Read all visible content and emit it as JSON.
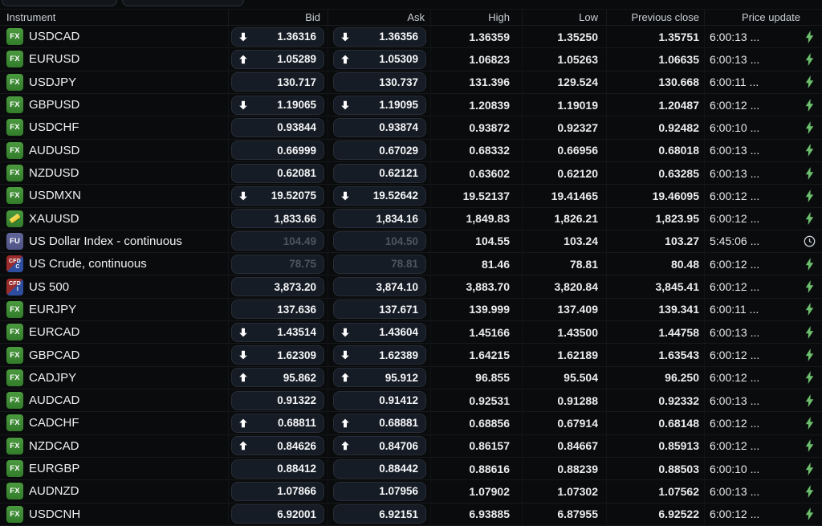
{
  "topbar": {
    "pill_left": "",
    "pill_right": ""
  },
  "header": {
    "columns": [
      "Instrument",
      "Bid",
      "Ask",
      "High",
      "Low",
      "Previous close",
      "Price update"
    ]
  },
  "icons": {
    "fx_badge": "fx-instrument-badge",
    "gold_badge": "gold-bar-icon",
    "fu_badge": "futures-instrument-badge",
    "cfd_badge": "cfd-instrument-badge",
    "arrow_down": "price-down-arrow-icon",
    "arrow_up": "price-up-arrow-icon",
    "bolt": "live-price-lightning-icon",
    "clock": "delayed-price-clock-icon"
  },
  "colors": {
    "background": "#0a0b0c",
    "button_bg": "#161c25",
    "fx_badge_green": "#3f8c34",
    "fu_badge_slate": "#585d91",
    "cfd_red": "#9c2b2b",
    "cfd_blue": "#2e4d9e",
    "gold": "#f0d040",
    "bolt_green": "#6cbf6d",
    "disabled_text": "#4d555e"
  },
  "rows": [
    {
      "badge_type": "fx",
      "badge_label": "FX",
      "badge_sub": "",
      "name": "USDCAD",
      "direction": "down",
      "bid": "1.36316",
      "ask": "1.36356",
      "high": "1.36359",
      "low": "1.35250",
      "prev_close": "1.35751",
      "time": "6:00:13 ...",
      "disabled": false,
      "status_icon": "bolt"
    },
    {
      "badge_type": "fx",
      "badge_label": "FX",
      "badge_sub": "",
      "name": "EURUSD",
      "direction": "up",
      "bid": "1.05289",
      "ask": "1.05309",
      "high": "1.06823",
      "low": "1.05263",
      "prev_close": "1.06635",
      "time": "6:00:13 ...",
      "disabled": false,
      "status_icon": "bolt"
    },
    {
      "badge_type": "fx",
      "badge_label": "FX",
      "badge_sub": "",
      "name": "USDJPY",
      "direction": "none",
      "bid": "130.717",
      "ask": "130.737",
      "high": "131.396",
      "low": "129.524",
      "prev_close": "130.668",
      "time": "6:00:11 ...",
      "disabled": false,
      "status_icon": "bolt"
    },
    {
      "badge_type": "fx",
      "badge_label": "FX",
      "badge_sub": "",
      "name": "GBPUSD",
      "direction": "down",
      "bid": "1.19065",
      "ask": "1.19095",
      "high": "1.20839",
      "low": "1.19019",
      "prev_close": "1.20487",
      "time": "6:00:12 ...",
      "disabled": false,
      "status_icon": "bolt"
    },
    {
      "badge_type": "fx",
      "badge_label": "FX",
      "badge_sub": "",
      "name": "USDCHF",
      "direction": "none",
      "bid": "0.93844",
      "ask": "0.93874",
      "high": "0.93872",
      "low": "0.92327",
      "prev_close": "0.92482",
      "time": "6:00:10 ...",
      "disabled": false,
      "status_icon": "bolt"
    },
    {
      "badge_type": "fx",
      "badge_label": "FX",
      "badge_sub": "",
      "name": "AUDUSD",
      "direction": "none",
      "bid": "0.66999",
      "ask": "0.67029",
      "high": "0.68332",
      "low": "0.66956",
      "prev_close": "0.68018",
      "time": "6:00:13 ...",
      "disabled": false,
      "status_icon": "bolt"
    },
    {
      "badge_type": "fx",
      "badge_label": "FX",
      "badge_sub": "",
      "name": "NZDUSD",
      "direction": "none",
      "bid": "0.62081",
      "ask": "0.62121",
      "high": "0.63602",
      "low": "0.62120",
      "prev_close": "0.63285",
      "time": "6:00:13 ...",
      "disabled": false,
      "status_icon": "bolt"
    },
    {
      "badge_type": "fx",
      "badge_label": "FX",
      "badge_sub": "",
      "name": "USDMXN",
      "direction": "down",
      "bid": "19.52075",
      "ask": "19.52642",
      "high": "19.52137",
      "low": "19.41465",
      "prev_close": "19.46095",
      "time": "6:00:12 ...",
      "disabled": false,
      "status_icon": "bolt"
    },
    {
      "badge_type": "gold",
      "badge_label": "",
      "badge_sub": "",
      "name": "XAUUSD",
      "direction": "none",
      "bid": "1,833.66",
      "ask": "1,834.16",
      "high": "1,849.83",
      "low": "1,826.21",
      "prev_close": "1,823.95",
      "time": "6:00:12 ...",
      "disabled": false,
      "status_icon": "bolt"
    },
    {
      "badge_type": "fu",
      "badge_label": "FU",
      "badge_sub": "",
      "name": "US Dollar Index - continuous",
      "direction": "none",
      "bid": "104.49",
      "ask": "104.50",
      "high": "104.55",
      "low": "103.24",
      "prev_close": "103.27",
      "time": "5:45:06 ...",
      "disabled": true,
      "status_icon": "clock"
    },
    {
      "badge_type": "cfd",
      "badge_label": "CFD",
      "badge_sub": "C",
      "name": "US Crude, continuous",
      "direction": "none",
      "bid": "78.75",
      "ask": "78.81",
      "high": "81.46",
      "low": "78.81",
      "prev_close": "80.48",
      "time": "6:00:12 ...",
      "disabled": true,
      "status_icon": "bolt"
    },
    {
      "badge_type": "cfd",
      "badge_label": "CFD",
      "badge_sub": "I",
      "name": "US 500",
      "direction": "none",
      "bid": "3,873.20",
      "ask": "3,874.10",
      "high": "3,883.70",
      "low": "3,820.84",
      "prev_close": "3,845.41",
      "time": "6:00:12 ...",
      "disabled": false,
      "status_icon": "bolt"
    },
    {
      "badge_type": "fx",
      "badge_label": "FX",
      "badge_sub": "",
      "name": "EURJPY",
      "direction": "none",
      "bid": "137.636",
      "ask": "137.671",
      "high": "139.999",
      "low": "137.409",
      "prev_close": "139.341",
      "time": "6:00:11 ...",
      "disabled": false,
      "status_icon": "bolt"
    },
    {
      "badge_type": "fx",
      "badge_label": "FX",
      "badge_sub": "",
      "name": "EURCAD",
      "direction": "down",
      "bid": "1.43514",
      "ask": "1.43604",
      "high": "1.45166",
      "low": "1.43500",
      "prev_close": "1.44758",
      "time": "6:00:13 ...",
      "disabled": false,
      "status_icon": "bolt"
    },
    {
      "badge_type": "fx",
      "badge_label": "FX",
      "badge_sub": "",
      "name": "GBPCAD",
      "direction": "down",
      "bid": "1.62309",
      "ask": "1.62389",
      "high": "1.64215",
      "low": "1.62189",
      "prev_close": "1.63543",
      "time": "6:00:12 ...",
      "disabled": false,
      "status_icon": "bolt"
    },
    {
      "badge_type": "fx",
      "badge_label": "FX",
      "badge_sub": "",
      "name": "CADJPY",
      "direction": "up",
      "bid": "95.862",
      "ask": "95.912",
      "high": "96.855",
      "low": "95.504",
      "prev_close": "96.250",
      "time": "6:00:12 ...",
      "disabled": false,
      "status_icon": "bolt"
    },
    {
      "badge_type": "fx",
      "badge_label": "FX",
      "badge_sub": "",
      "name": "AUDCAD",
      "direction": "none",
      "bid": "0.91322",
      "ask": "0.91412",
      "high": "0.92531",
      "low": "0.91288",
      "prev_close": "0.92332",
      "time": "6:00:13 ...",
      "disabled": false,
      "status_icon": "bolt"
    },
    {
      "badge_type": "fx",
      "badge_label": "FX",
      "badge_sub": "",
      "name": "CADCHF",
      "direction": "up",
      "bid": "0.68811",
      "ask": "0.68881",
      "high": "0.68856",
      "low": "0.67914",
      "prev_close": "0.68148",
      "time": "6:00:12 ...",
      "disabled": false,
      "status_icon": "bolt"
    },
    {
      "badge_type": "fx",
      "badge_label": "FX",
      "badge_sub": "",
      "name": "NZDCAD",
      "direction": "up",
      "bid": "0.84626",
      "ask": "0.84706",
      "high": "0.86157",
      "low": "0.84667",
      "prev_close": "0.85913",
      "time": "6:00:12 ...",
      "disabled": false,
      "status_icon": "bolt"
    },
    {
      "badge_type": "fx",
      "badge_label": "FX",
      "badge_sub": "",
      "name": "EURGBP",
      "direction": "none",
      "bid": "0.88412",
      "ask": "0.88442",
      "high": "0.88616",
      "low": "0.88239",
      "prev_close": "0.88503",
      "time": "6:00:10 ...",
      "disabled": false,
      "status_icon": "bolt"
    },
    {
      "badge_type": "fx",
      "badge_label": "FX",
      "badge_sub": "",
      "name": "AUDNZD",
      "direction": "none",
      "bid": "1.07866",
      "ask": "1.07956",
      "high": "1.07902",
      "low": "1.07302",
      "prev_close": "1.07562",
      "time": "6:00:13 ...",
      "disabled": false,
      "status_icon": "bolt"
    },
    {
      "badge_type": "fx",
      "badge_label": "FX",
      "badge_sub": "",
      "name": "USDCNH",
      "direction": "none",
      "bid": "6.92001",
      "ask": "6.92151",
      "high": "6.93885",
      "low": "6.87955",
      "prev_close": "6.92522",
      "time": "6:00:12 ...",
      "disabled": false,
      "status_icon": "bolt"
    }
  ]
}
